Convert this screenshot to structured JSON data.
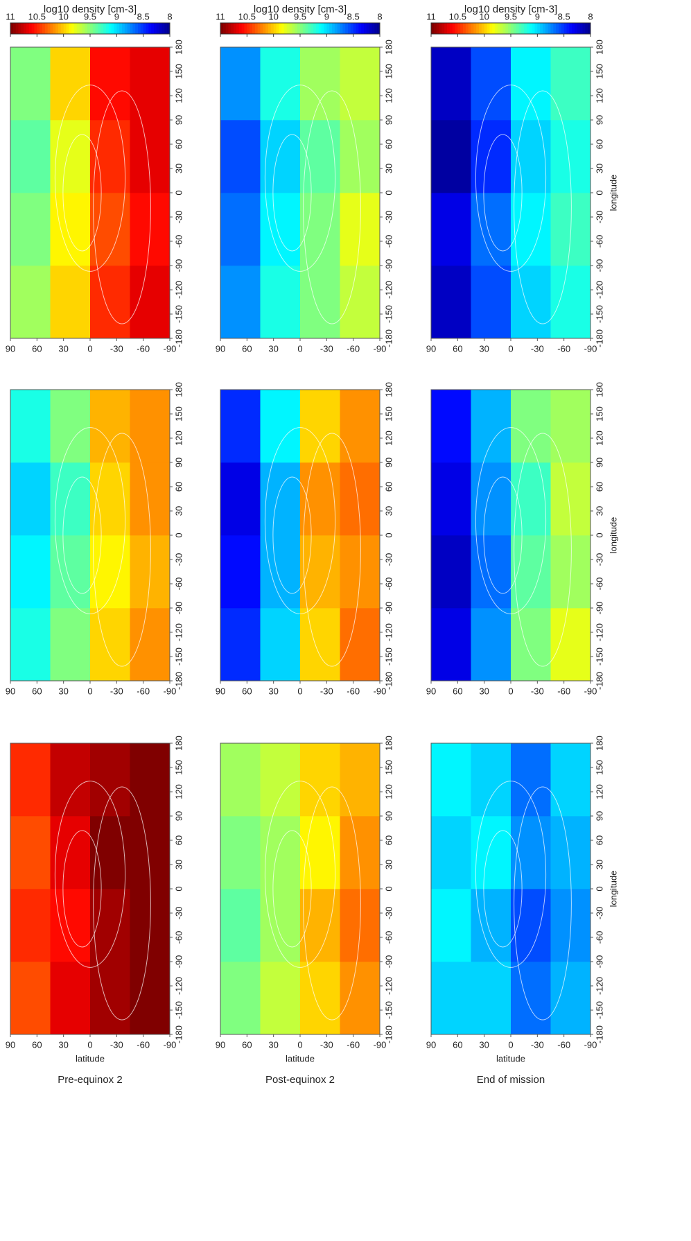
{
  "chart_data": {
    "type": "heatmap",
    "colorbar_label": "log10 density [cm-3]",
    "clim": [
      8,
      11
    ],
    "cticks": [
      11,
      10.5,
      10,
      9.5,
      9,
      8.5,
      8
    ],
    "xlabel": "latitude",
    "ylabel": "longitude",
    "xlim": [
      90,
      -90
    ],
    "xticks": [
      90,
      60,
      30,
      0,
      -30,
      -60,
      -90
    ],
    "ylim": [
      -180,
      180
    ],
    "yticks": [
      -180,
      -150,
      -120,
      -90,
      -60,
      -30,
      0,
      30,
      60,
      90,
      120,
      150,
      180
    ],
    "columns": [
      {
        "label": "Pre-equinox 2",
        "panels": [
          {
            "values": [
              [
                9.6,
                10.0,
                10.5,
                10.7
              ],
              [
                9.5,
                9.9,
                10.4,
                10.6
              ],
              [
                9.4,
                9.8,
                10.5,
                10.7
              ],
              [
                9.5,
                10.0,
                10.6,
                10.7
              ]
            ]
          },
          {
            "values": [
              [
                9.2,
                9.5,
                10.0,
                10.2
              ],
              [
                9.1,
                9.4,
                9.9,
                10.1
              ],
              [
                9.0,
                9.3,
                10.0,
                10.2
              ],
              [
                9.2,
                9.5,
                10.1,
                10.2
              ]
            ]
          },
          {
            "values": [
              [
                10.4,
                10.7,
                10.9,
                11.0
              ],
              [
                10.5,
                10.6,
                10.9,
                11.0
              ],
              [
                10.4,
                10.7,
                11.0,
                11.0
              ],
              [
                10.5,
                10.8,
                10.9,
                11.0
              ]
            ]
          }
        ]
      },
      {
        "label": "Post-equinox 2",
        "panels": [
          {
            "values": [
              [
                8.8,
                9.2,
                9.5,
                9.7
              ],
              [
                8.7,
                9.1,
                9.5,
                9.8
              ],
              [
                8.6,
                9.0,
                9.4,
                9.6
              ],
              [
                8.8,
                9.2,
                9.6,
                9.7
              ]
            ]
          },
          {
            "values": [
              [
                8.5,
                9.0,
                10.0,
                10.3
              ],
              [
                8.4,
                8.9,
                10.1,
                10.2
              ],
              [
                8.3,
                8.9,
                10.2,
                10.3
              ],
              [
                8.5,
                9.1,
                10.0,
                10.2
              ]
            ]
          },
          {
            "values": [
              [
                9.5,
                9.7,
                10.0,
                10.2
              ],
              [
                9.4,
                9.6,
                10.1,
                10.3
              ],
              [
                9.5,
                9.6,
                9.9,
                10.2
              ],
              [
                9.6,
                9.7,
                10.0,
                10.1
              ]
            ]
          }
        ]
      },
      {
        "label": "End of mission",
        "panels": [
          {
            "values": [
              [
                8.2,
                8.6,
                9.0,
                9.2
              ],
              [
                8.3,
                8.7,
                9.1,
                9.3
              ],
              [
                8.1,
                8.5,
                9.0,
                9.2
              ],
              [
                8.2,
                8.6,
                9.1,
                9.3
              ]
            ]
          },
          {
            "values": [
              [
                8.3,
                8.8,
                9.5,
                9.8
              ],
              [
                8.2,
                8.7,
                9.4,
                9.6
              ],
              [
                8.3,
                8.8,
                9.3,
                9.7
              ],
              [
                8.4,
                8.9,
                9.5,
                9.6
              ]
            ]
          },
          {
            "values": [
              [
                9.0,
                9.0,
                8.7,
                8.9
              ],
              [
                9.1,
                8.9,
                8.6,
                8.8
              ],
              [
                9.0,
                9.1,
                8.8,
                8.9
              ],
              [
                9.1,
                9.0,
                8.7,
                9.0
              ]
            ]
          }
        ]
      }
    ]
  }
}
